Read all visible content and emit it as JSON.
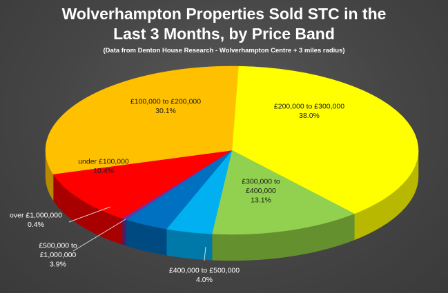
{
  "chart_data": {
    "type": "pie",
    "title_line1": "Wolverhampton Properties Sold STC in the",
    "title_line2": "Last 3 Months, by Price Band",
    "subtitle": "(Data from Denton House Research - Wolverhampton Centre + 3 miles radius)",
    "slices": [
      {
        "label": [
          "£200,000 to £300,000"
        ],
        "pct": "38.0%",
        "value": 38.0,
        "color": "#ffff00",
        "side": "#b8b800"
      },
      {
        "label": [
          "£300,000 to",
          "£400,000"
        ],
        "pct": "13.1%",
        "value": 13.1,
        "color": "#92d050",
        "side": "#64902e"
      },
      {
        "label": [
          "£400,000 to £500,000"
        ],
        "pct": "4.0%",
        "value": 4.0,
        "color": "#00b0f0",
        "side": "#0078a8"
      },
      {
        "label": [
          "£500,000 to",
          "£1,000,000"
        ],
        "pct": "3.9%",
        "value": 3.9,
        "color": "#0070c0",
        "side": "#004a82"
      },
      {
        "label": [
          "over £1,000,000"
        ],
        "pct": "0.4%",
        "value": 0.4,
        "color": "#7030a0",
        "side": "#4a1f6a"
      },
      {
        "label": [
          "under £100,000"
        ],
        "pct": "10.4%",
        "value": 10.4,
        "color": "#ff0000",
        "side": "#a80000"
      },
      {
        "label": [
          "£100,000 to £200,000"
        ],
        "pct": "30.1%",
        "value": 30.1,
        "color": "#ffc000",
        "side": "#b88a00"
      }
    ]
  }
}
